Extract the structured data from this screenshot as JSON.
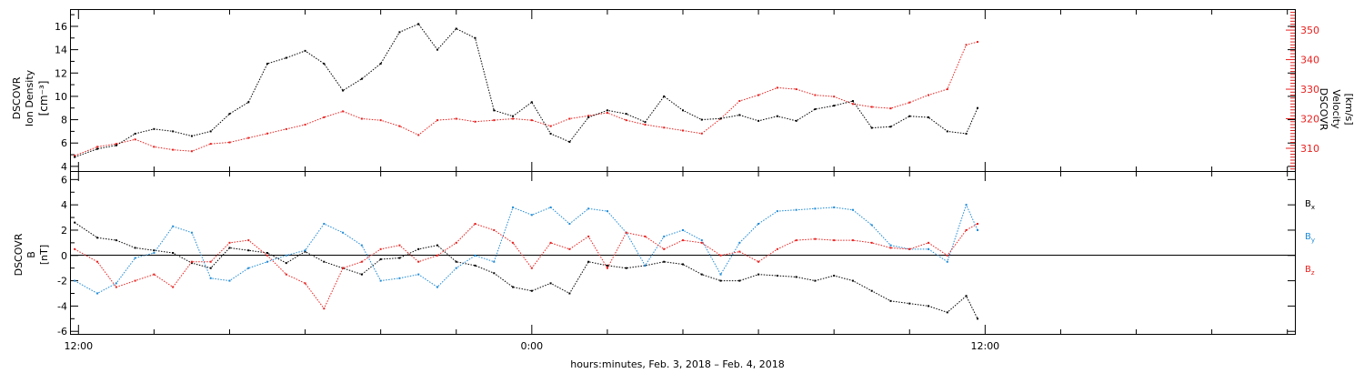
{
  "chart_data": [
    {
      "type": "scatter",
      "panel": "density-velocity",
      "ylabel_left": [
        "DSCOVR",
        "Ion Density",
        "[cm⁻³]"
      ],
      "ylabel_right": [
        "DSCOVR",
        "Velocity",
        "[km/s]"
      ],
      "ylim_left": [
        3.6,
        17.4
      ],
      "yticks_left": [
        4,
        6,
        8,
        10,
        12,
        14,
        16
      ],
      "ylim_right": [
        302.3,
        356.8
      ],
      "yticks_right": [
        310,
        320,
        330,
        340,
        350
      ],
      "colors": {
        "density": "#000000",
        "velocity": "#e8211f"
      },
      "series": [
        {
          "axis": "left",
          "color": "#000000",
          "x": [
            11.9,
            12.5,
            13.0,
            13.5,
            14.0,
            14.5,
            15.0,
            15.5,
            16.0,
            16.5,
            17.0,
            17.5,
            18.0,
            18.5,
            19.0,
            19.5,
            20.0,
            20.5,
            21.0,
            21.5,
            22.0,
            22.5,
            23.0,
            23.5,
            24.0,
            24.5,
            25.0,
            25.5,
            26.0,
            26.5,
            27.0,
            27.5,
            28.0,
            28.5,
            29.0,
            29.5,
            30.0,
            30.5,
            31.0,
            31.5,
            32.0,
            32.5,
            33.0,
            33.5,
            34.0,
            34.5,
            35.0,
            35.5,
            35.8
          ],
          "y": [
            4.8,
            5.5,
            5.8,
            6.8,
            7.2,
            7.0,
            6.6,
            7.0,
            8.5,
            9.5,
            12.8,
            13.3,
            13.9,
            12.8,
            10.5,
            11.5,
            12.8,
            15.5,
            16.2,
            14.0,
            15.8,
            15.0,
            8.8,
            8.3,
            9.5,
            6.8,
            6.1,
            8.2,
            8.8,
            8.5,
            7.8,
            10.0,
            8.8,
            8.0,
            8.1,
            8.4,
            7.9,
            8.3,
            7.9,
            8.9,
            9.2,
            9.6,
            7.3,
            7.4,
            8.3,
            8.2,
            7.0,
            6.8,
            9.0
          ]
        },
        {
          "axis": "right",
          "color": "#e8211f",
          "x": [
            11.9,
            12.5,
            13.0,
            13.5,
            14.0,
            14.5,
            15.0,
            15.5,
            16.0,
            16.5,
            17.0,
            17.5,
            18.0,
            18.5,
            19.0,
            19.5,
            20.0,
            20.5,
            21.0,
            21.5,
            22.0,
            22.5,
            23.0,
            23.5,
            24.0,
            24.5,
            25.0,
            25.5,
            26.0,
            26.5,
            27.0,
            27.5,
            28.0,
            28.5,
            29.0,
            29.5,
            30.0,
            30.5,
            31.0,
            31.5,
            32.0,
            32.5,
            33.0,
            33.5,
            34.0,
            34.5,
            35.0,
            35.5,
            35.8
          ],
          "y": [
            307.5,
            310.5,
            311.5,
            313.0,
            310.5,
            309.5,
            309.0,
            311.5,
            312.0,
            313.5,
            315.0,
            316.5,
            318.0,
            320.5,
            322.5,
            320.0,
            319.5,
            317.5,
            314.5,
            319.5,
            320.0,
            319.0,
            319.5,
            320.0,
            319.5,
            317.5,
            320.0,
            321.0,
            322.0,
            319.5,
            318.0,
            317.0,
            316.0,
            315.0,
            320.0,
            326.0,
            328.0,
            330.5,
            330.0,
            328.0,
            327.5,
            325.0,
            324.0,
            323.5,
            325.5,
            328.0,
            330.0,
            345.0,
            346.0
          ]
        }
      ]
    },
    {
      "type": "scatter",
      "panel": "magnetic-field",
      "ylabel": [
        "DSCOVR",
        "B",
        "[nT]"
      ],
      "ylim": [
        -6.2,
        6.6
      ],
      "yticks": [
        -6,
        -4,
        -2,
        0,
        2,
        4,
        6
      ],
      "zero_line": true,
      "legend_position": "right",
      "series": [
        {
          "name": "Bx",
          "color": "#000000",
          "x": [
            11.9,
            12.5,
            13.0,
            13.5,
            14.0,
            14.5,
            15.0,
            15.5,
            16.0,
            16.5,
            17.0,
            17.5,
            18.0,
            18.5,
            19.0,
            19.5,
            20.0,
            20.5,
            21.0,
            21.5,
            22.0,
            22.5,
            23.0,
            23.5,
            24.0,
            24.5,
            25.0,
            25.5,
            26.0,
            26.5,
            27.0,
            27.5,
            28.0,
            28.5,
            29.0,
            29.5,
            30.0,
            30.5,
            31.0,
            31.5,
            32.0,
            32.5,
            33.0,
            33.5,
            34.0,
            34.5,
            35.0,
            35.5,
            35.8
          ],
          "y": [
            2.6,
            1.4,
            1.2,
            0.6,
            0.4,
            0.2,
            -0.6,
            -1.0,
            0.6,
            0.4,
            0.2,
            -0.6,
            0.3,
            -0.5,
            -1.0,
            -1.5,
            -0.3,
            -0.2,
            0.5,
            0.8,
            -0.5,
            -0.8,
            -1.4,
            -2.5,
            -2.8,
            -2.2,
            -3.0,
            -0.5,
            -0.8,
            -1.0,
            -0.8,
            -0.5,
            -0.7,
            -1.5,
            -2.0,
            -2.0,
            -1.5,
            -1.6,
            -1.7,
            -2.0,
            -1.6,
            -2.0,
            -2.8,
            -3.6,
            -3.8,
            -4.0,
            -4.5,
            -3.2,
            -5.0
          ]
        },
        {
          "name": "By",
          "color": "#1f8ad6",
          "x": [
            11.9,
            12.5,
            13.0,
            13.5,
            14.0,
            14.5,
            15.0,
            15.5,
            16.0,
            16.5,
            17.0,
            17.5,
            18.0,
            18.5,
            19.0,
            19.5,
            20.0,
            20.5,
            21.0,
            21.5,
            22.0,
            22.5,
            23.0,
            23.5,
            24.0,
            24.5,
            25.0,
            25.5,
            26.0,
            26.5,
            27.0,
            27.5,
            28.0,
            28.5,
            29.0,
            29.5,
            30.0,
            30.5,
            31.0,
            31.5,
            32.0,
            32.5,
            33.0,
            33.5,
            34.0,
            34.5,
            35.0,
            35.5,
            35.8
          ],
          "y": [
            -2.0,
            -3.0,
            -2.2,
            -0.2,
            0.2,
            2.3,
            1.8,
            -1.8,
            -2.0,
            -1.0,
            -0.5,
            0.0,
            0.4,
            2.5,
            1.8,
            0.8,
            -2.0,
            -1.8,
            -1.5,
            -2.5,
            -1.0,
            0.0,
            -0.5,
            3.8,
            3.2,
            3.8,
            2.5,
            3.7,
            3.5,
            1.8,
            -0.8,
            1.5,
            2.0,
            1.2,
            -1.5,
            1.0,
            2.5,
            3.5,
            3.6,
            3.7,
            3.8,
            3.6,
            2.4,
            0.8,
            0.5,
            0.5,
            -0.5,
            4.0,
            2.0
          ]
        },
        {
          "name": "Bz",
          "color": "#e8211f",
          "x": [
            11.9,
            12.5,
            13.0,
            13.5,
            14.0,
            14.5,
            15.0,
            15.5,
            16.0,
            16.5,
            17.0,
            17.5,
            18.0,
            18.5,
            19.0,
            19.5,
            20.0,
            20.5,
            21.0,
            21.5,
            22.0,
            22.5,
            23.0,
            23.5,
            24.0,
            24.5,
            25.0,
            25.5,
            26.0,
            26.5,
            27.0,
            27.5,
            28.0,
            28.5,
            29.0,
            29.5,
            30.0,
            30.5,
            31.0,
            31.5,
            32.0,
            32.5,
            33.0,
            33.5,
            34.0,
            34.5,
            35.0,
            35.5,
            35.8
          ],
          "y": [
            0.5,
            -0.5,
            -2.5,
            -2.0,
            -1.5,
            -2.5,
            -0.5,
            -0.5,
            1.0,
            1.2,
            0.0,
            -1.5,
            -2.2,
            -4.2,
            -1.0,
            -0.5,
            0.5,
            0.8,
            -0.5,
            0.0,
            1.0,
            2.5,
            2.0,
            1.0,
            -1.0,
            1.0,
            0.5,
            1.5,
            -1.0,
            1.8,
            1.5,
            0.5,
            1.2,
            1.0,
            0.0,
            0.3,
            -0.5,
            0.5,
            1.2,
            1.3,
            1.2,
            1.2,
            1.0,
            0.6,
            0.5,
            1.0,
            0.0,
            2.0,
            2.5
          ]
        }
      ]
    }
  ],
  "x_axis": {
    "range": [
      11.8,
      44.2
    ],
    "major_ticks": [
      12,
      24,
      36
    ],
    "minor_tick_step": 2,
    "tick_labels": [
      "12:00",
      "0:00",
      "12:00"
    ],
    "title": "hours:minutes, Feb.  3, 2018 – Feb.  4, 2018"
  },
  "legend": [
    {
      "base": "B",
      "sub": "x",
      "color": "#000000"
    },
    {
      "base": "B",
      "sub": "y",
      "color": "#1f8ad6"
    },
    {
      "base": "B",
      "sub": "z",
      "color": "#e8211f"
    }
  ]
}
